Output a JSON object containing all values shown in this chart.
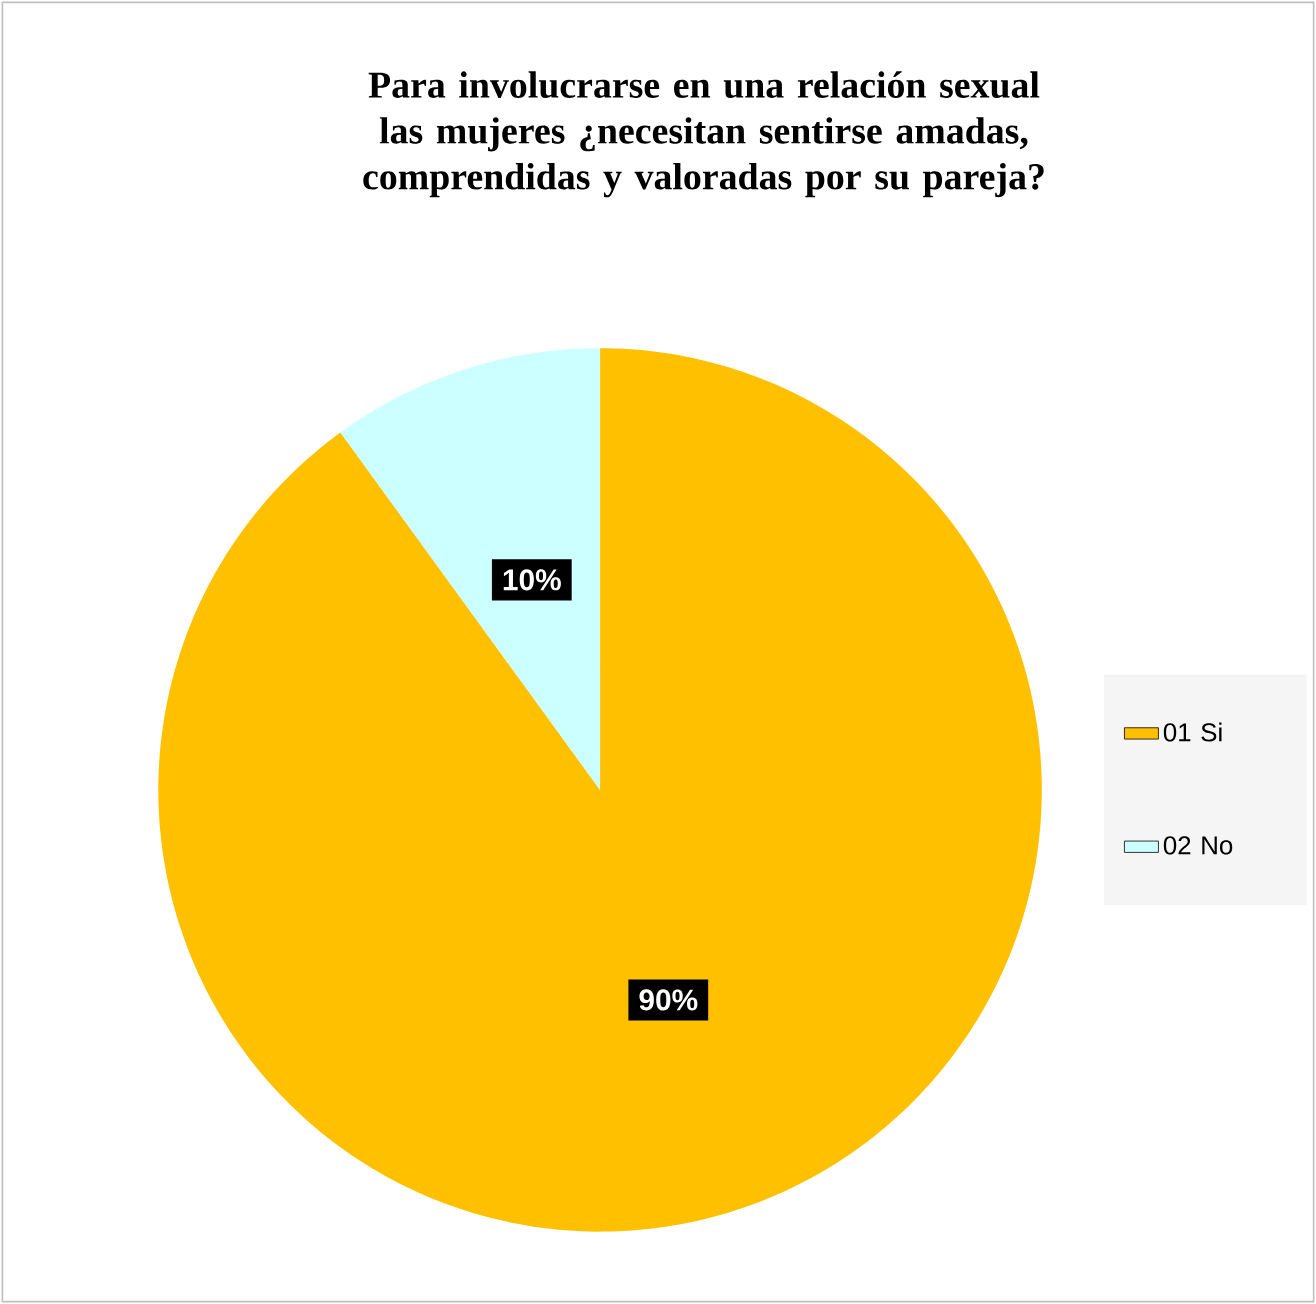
{
  "chart_data": {
    "type": "pie",
    "title": "Para involucrarse en una relación sexual las mujeres ¿necesitan sentirse amadas, comprendidas y valoradas por su pareja?",
    "categories": [
      "01 Si",
      "02 No"
    ],
    "values": [
      90,
      10
    ],
    "colors": [
      "#ffc000",
      "#ccffff"
    ],
    "value_labels": [
      "90%",
      "10%"
    ],
    "legend": "right"
  }
}
